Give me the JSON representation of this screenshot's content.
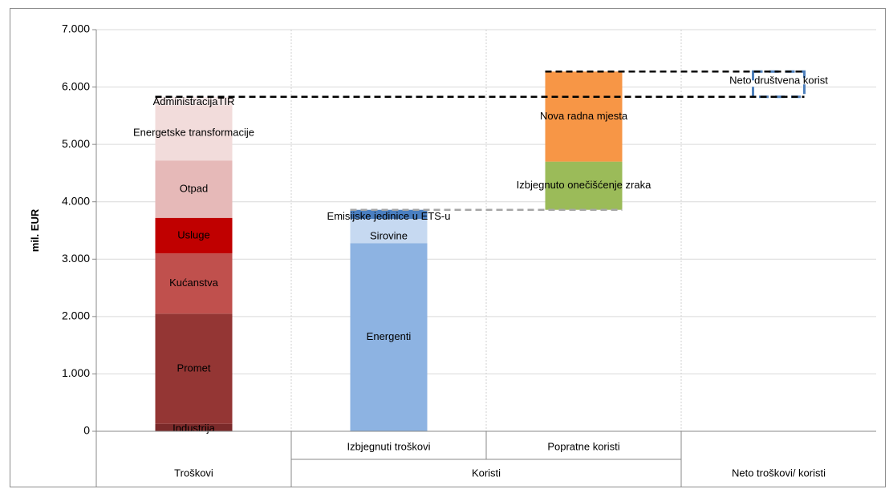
{
  "chart_data": {
    "type": "bar",
    "subtype": "waterfall-stacked",
    "ylabel": "mil. EUR",
    "ylim": [
      0,
      7000
    ],
    "yticks": [
      0,
      1000,
      2000,
      3000,
      4000,
      5000,
      6000,
      7000
    ],
    "ytick_labels": [
      "0",
      "1.000",
      "2.000",
      "3.000",
      "4.000",
      "5.000",
      "6.000",
      "7.000"
    ],
    "grid": true,
    "categories": [
      "Troškovi",
      "Izbjegnuti  troškovi",
      "Popratne koristi",
      "Neto troškovi/ koristi"
    ],
    "groups": [
      {
        "label": "Troškovi",
        "categories": [
          "Troškovi"
        ]
      },
      {
        "label": "Koristi",
        "categories": [
          "Izbjegnuti  troškovi",
          "Popratne koristi"
        ]
      },
      {
        "label": "Neto troškovi/ koristi",
        "categories": [
          "Neto troškovi/ koristi"
        ]
      }
    ],
    "stacks": [
      {
        "category": "Troškovi",
        "segments": [
          {
            "name": "Industrija",
            "start": 0,
            "end": 130,
            "color": "#7b2a2a"
          },
          {
            "name": "Promet",
            "start": 130,
            "end": 2050,
            "color": "#943634"
          },
          {
            "name": "Kućanstva",
            "start": 2050,
            "end": 3100,
            "color": "#c0504d"
          },
          {
            "name": "Usluge",
            "start": 3100,
            "end": 3720,
            "color": "#c00000"
          },
          {
            "name": "Otpad",
            "start": 3720,
            "end": 4720,
            "color": "#e6b9b8"
          },
          {
            "name": "Energetske transformacije",
            "start": 4720,
            "end": 5680,
            "color": "#f2dcdb"
          },
          {
            "name": "AdministracijaTIR",
            "start": 5680,
            "end": 5830,
            "color": "#f6e9e9"
          }
        ]
      },
      {
        "category": "Izbjegnuti  troškovi",
        "segments": [
          {
            "name": "Energenti",
            "start": 0,
            "end": 3280,
            "color": "#8db3e2"
          },
          {
            "name": "Sirovine",
            "start": 3280,
            "end": 3700,
            "color": "#c6d9f1"
          },
          {
            "name": "Emisijske jedinice u ETS-u",
            "start": 3700,
            "end": 3860,
            "color": "#4a7fc1"
          }
        ]
      },
      {
        "category": "Popratne koristi",
        "segments": [
          {
            "name": "Izbjegnuto onečišćenje zraka",
            "start": 3860,
            "end": 4700,
            "color": "#9bbb59"
          },
          {
            "name": "Nova radna mjesta",
            "start": 4700,
            "end": 6270,
            "color": "#f79646"
          }
        ]
      }
    ],
    "net": {
      "category": "Neto troškovi/ koristi",
      "name": "Neto društvena korist",
      "start": 5830,
      "end": 6270,
      "color": "#4f81bd"
    },
    "reference_lines": [
      {
        "value": 5830,
        "from": "Troškovi",
        "to": "Neto troškovi/ koristi",
        "color": "#000000"
      },
      {
        "value": 6270,
        "from": "Popratne koristi",
        "to": "Neto troškovi/ koristi",
        "color": "#000000"
      },
      {
        "value": 3860,
        "from": "Izbjegnuti  troškovi",
        "to": "Popratne koristi",
        "color": "#a6a6a6"
      }
    ]
  }
}
